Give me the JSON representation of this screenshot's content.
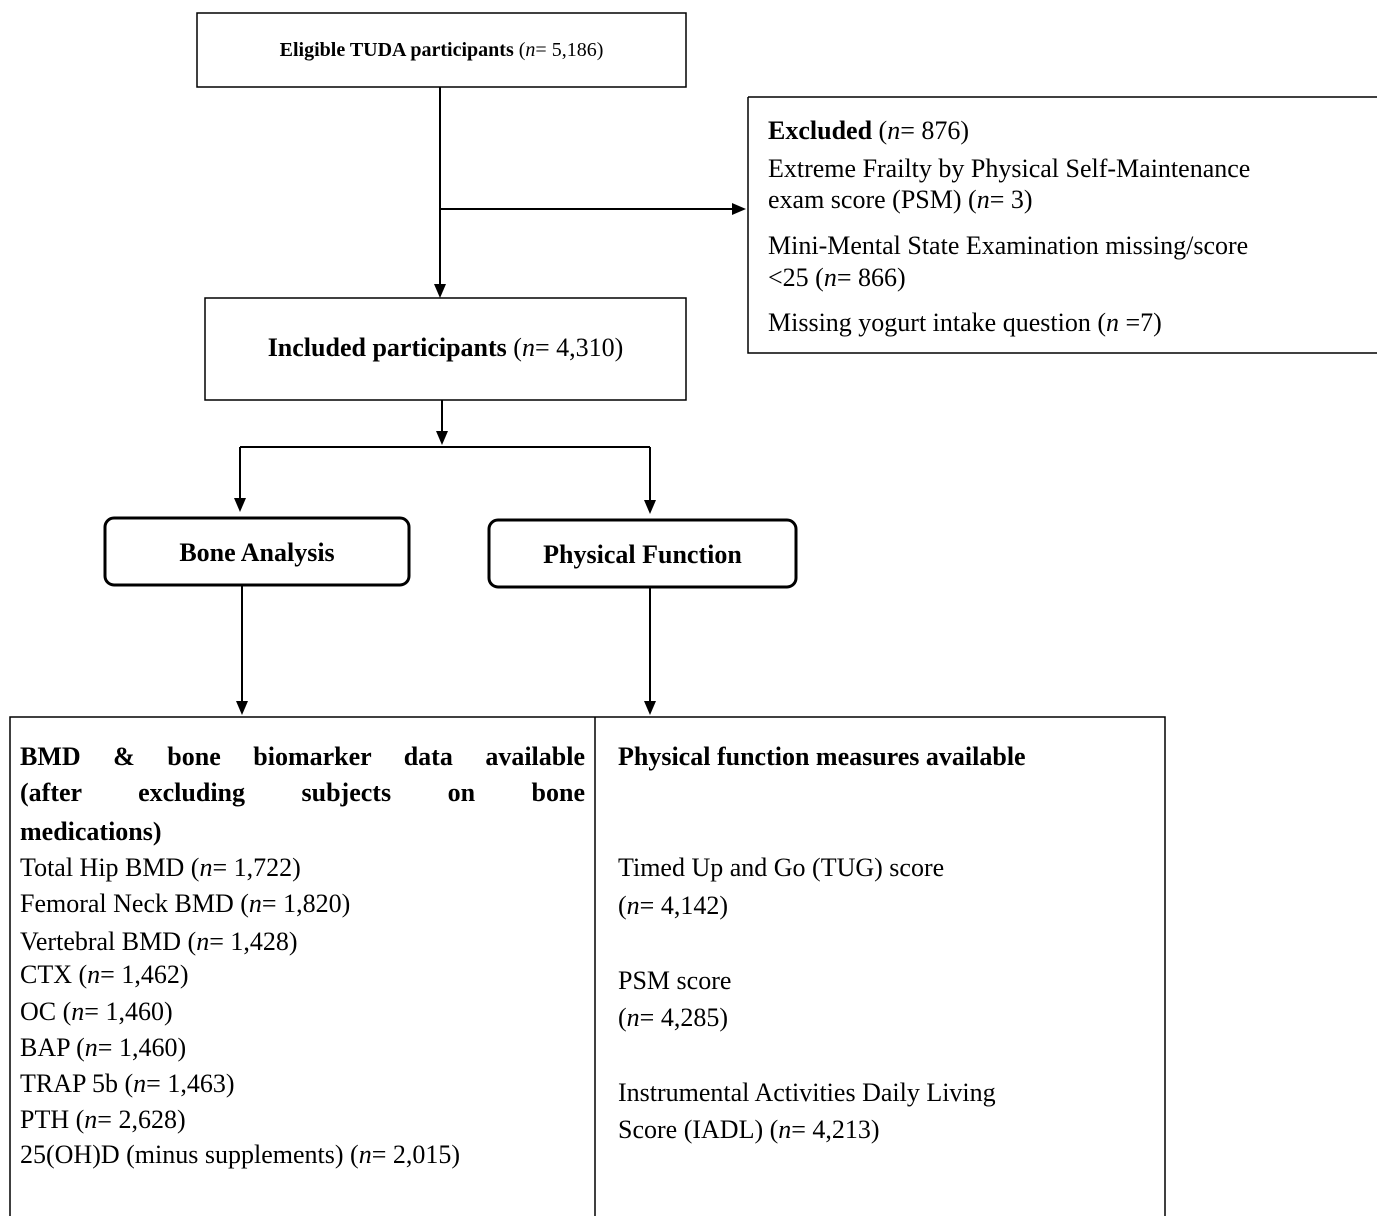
{
  "eligible": [
    {
      "b": "Eligible TUDA participants",
      "pre": " (",
      "it": "n",
      "post": "= 5,186)"
    }
  ],
  "excluded": [
    {
      "b": "Excluded",
      "pre": " (",
      "it": "n",
      "post": "= 876)"
    },
    {
      "pre": "Extreme Frailty by Physical Self-Maintenance"
    },
    {
      "pre": "exam score (PSM) (",
      "it": "n",
      "post": "= 3)"
    },
    {
      "pre": "Mini-Mental State Examination missing/score"
    },
    {
      "pre": "<25 (",
      "it": "n",
      "post": "= 866)"
    },
    {
      "pre": "Missing yogurt intake question (",
      "it": "n",
      "post": " =7)"
    }
  ],
  "included": [
    {
      "b": "Included participants",
      "pre": " (",
      "it": "n",
      "post": "= 4,310)"
    }
  ],
  "bone_analysis": [
    {
      "b": "Bone Analysis"
    }
  ],
  "physical_function": [
    {
      "b": "Physical Function"
    }
  ],
  "bone_heading": [
    {
      "b": "BMD & bone biomarker data available"
    },
    {
      "b": "(after excluding subjects on bone"
    },
    {
      "b": "medications)"
    }
  ],
  "bone_measures": [
    {
      "pre": "Total Hip BMD (",
      "it": "n",
      "post": "= 1,722)"
    },
    {
      "pre": "Femoral Neck BMD (",
      "it": "n",
      "post": "= 1,820)"
    },
    {
      "pre": "Vertebral BMD (",
      "it": "n",
      "post": "= 1,428)"
    },
    {
      "pre": "CTX (",
      "it": "n",
      "post": "= 1,462)"
    },
    {
      "pre": "OC (",
      "it": "n",
      "post": "= 1,460)"
    },
    {
      "pre": "BAP (",
      "it": "n",
      "post": "= 1,460)"
    },
    {
      "pre": "TRAP 5b (",
      "it": "n",
      "post": "= 1,463)"
    },
    {
      "pre": "PTH (",
      "it": "n",
      "post": "= 2,628)"
    },
    {
      "pre": "25(OH)D (minus supplements) (",
      "it": "n",
      "post": "= 2,015)"
    }
  ],
  "function_heading": [
    {
      "b": "Physical function measures available"
    }
  ],
  "function_measures": [
    {
      "pre": "Timed Up and Go (TUG) score"
    },
    {
      "pre": "(",
      "it": "n",
      "post": "= 4,142)"
    },
    {
      "pre": "PSM score"
    },
    {
      "pre": "(",
      "it": "n",
      "post": "= 4,285)"
    },
    {
      "pre": "Instrumental Activities Daily Living"
    },
    {
      "pre": "Score (IADL) (",
      "it": "n",
      "post": "= 4,213)"
    }
  ]
}
